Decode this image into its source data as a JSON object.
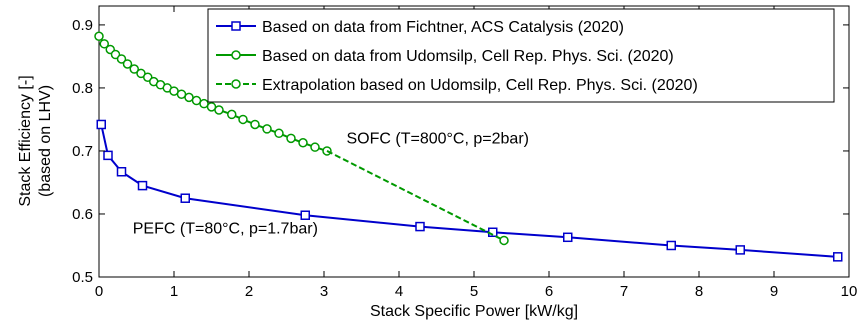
{
  "chart_data": {
    "type": "line",
    "xlabel": "Stack Specific Power [kW/kg]",
    "ylabel_line1": "Stack Efficiency [-]",
    "ylabel_line2": "(based on LHV)",
    "xlim": [
      0,
      10
    ],
    "ylim": [
      0.5,
      0.93
    ],
    "x_ticks": [
      0,
      1,
      2,
      3,
      4,
      5,
      6,
      7,
      8,
      9,
      10
    ],
    "y_ticks": [
      0.5,
      0.6,
      0.7,
      0.8,
      0.9
    ],
    "x_tick_labels": [
      "0",
      "1",
      "2",
      "3",
      "4",
      "5",
      "6",
      "7",
      "8",
      "9",
      "10"
    ],
    "y_tick_labels": [
      "0.5",
      "0.6",
      "0.7",
      "0.8",
      "0.9"
    ],
    "grid": false,
    "legend_position": "top-right",
    "series": [
      {
        "name": "Based on data from Fichtner, ACS Catalysis (2020)",
        "color": "#0000cc",
        "line_style": "solid",
        "marker": "square",
        "x": [
          0.03,
          0.12,
          0.3,
          0.58,
          1.15,
          2.75,
          4.28,
          5.25,
          6.25,
          7.63,
          8.55,
          9.85
        ],
        "y": [
          0.742,
          0.693,
          0.667,
          0.645,
          0.625,
          0.598,
          0.58,
          0.571,
          0.563,
          0.55,
          0.543,
          0.532
        ]
      },
      {
        "name": "Based on data from Udomsilp, Cell Rep. Phys. Sci. (2020)",
        "color": "#009900",
        "line_style": "solid",
        "marker": "circle",
        "x": [
          0.0,
          0.07,
          0.15,
          0.22,
          0.3,
          0.38,
          0.47,
          0.56,
          0.65,
          0.73,
          0.82,
          0.91,
          1.0,
          1.1,
          1.2,
          1.3,
          1.4,
          1.5,
          1.6,
          1.77,
          1.92,
          2.08,
          2.24,
          2.4,
          2.56,
          2.72,
          2.88,
          3.04
        ],
        "y": [
          0.882,
          0.87,
          0.861,
          0.853,
          0.846,
          0.838,
          0.83,
          0.823,
          0.817,
          0.81,
          0.805,
          0.8,
          0.795,
          0.79,
          0.785,
          0.78,
          0.775,
          0.77,
          0.765,
          0.758,
          0.75,
          0.742,
          0.735,
          0.728,
          0.72,
          0.713,
          0.706,
          0.7
        ]
      },
      {
        "name": "Extrapolation based on Udomsilp, Cell Rep. Phys. Sci. (2020)",
        "color": "#009900",
        "line_style": "dashed",
        "marker": "circle",
        "x": [
          3.04,
          5.4
        ],
        "y": [
          0.7,
          0.558
        ]
      }
    ],
    "annotations": [
      {
        "text": "SOFC (T=800°C, p=2bar)",
        "x": 3.3,
        "y": 0.712
      },
      {
        "text": "PEFC (T=80°C, p=1.7bar)",
        "x": 0.45,
        "y": 0.569
      }
    ]
  }
}
